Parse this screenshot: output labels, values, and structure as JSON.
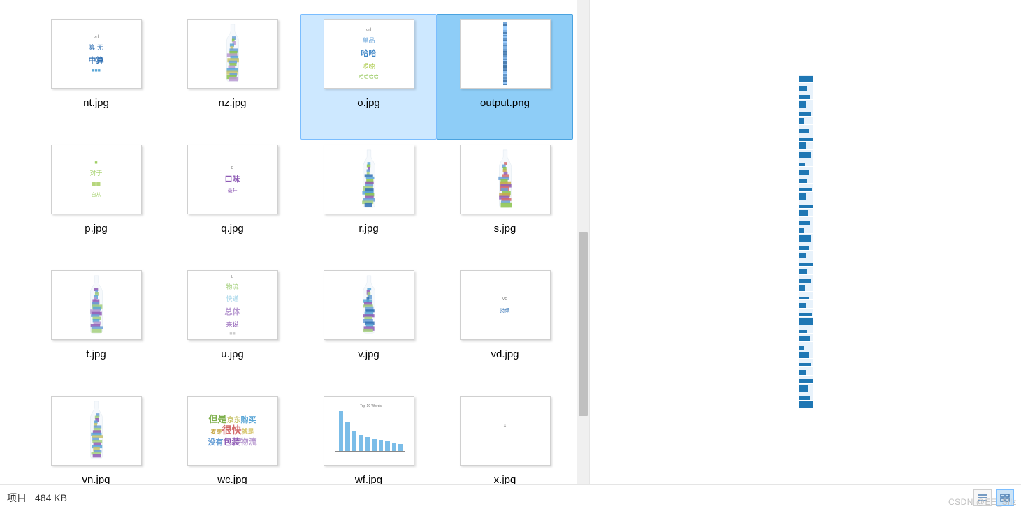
{
  "grid": {
    "items": [
      {
        "name": "nt.jpg",
        "kind": "text",
        "lines": [
          "vd",
          "算 无",
          "中算",
          "■■■"
        ],
        "colors": [
          "#888888",
          "#2f6fb3",
          "#2f6fb3",
          "#5aa6d6"
        ],
        "selected": "none"
      },
      {
        "name": "nz.jpg",
        "kind": "bottle",
        "palette": "mixA",
        "selected": "none"
      },
      {
        "name": "o.jpg",
        "kind": "text",
        "lines": [
          "vd",
          "单品",
          "哈哈",
          "啰嗦",
          "哈哈哈哈"
        ],
        "colors": [
          "#888888",
          "#6fa8dc",
          "#3d85c6",
          "#a4c639",
          "#8bc34a"
        ],
        "selected": "light"
      },
      {
        "name": "output.png",
        "kind": "strip",
        "selected": "dark"
      },
      {
        "name": "p.jpg",
        "kind": "text",
        "lines": [
          "■",
          "对于",
          "■■",
          "自从"
        ],
        "colors": [
          "#9fce63",
          "#9fce63",
          "#b6d67c",
          "#9fce63"
        ],
        "selected": "none"
      },
      {
        "name": "q.jpg",
        "kind": "text",
        "lines": [
          "q",
          "口味",
          "毫升"
        ],
        "colors": [
          "#888888",
          "#8e5bb5",
          "#8e5bb5"
        ],
        "selected": "none"
      },
      {
        "name": "r.jpg",
        "kind": "bottle",
        "palette": "mixB",
        "selected": "none"
      },
      {
        "name": "s.jpg",
        "kind": "bottle",
        "palette": "mixC",
        "selected": "none"
      },
      {
        "name": "t.jpg",
        "kind": "bottle",
        "palette": "mixD",
        "selected": "none"
      },
      {
        "name": "u.jpg",
        "kind": "text",
        "lines": [
          "u",
          "物流",
          "快递",
          "总体",
          "来说",
          "■■"
        ],
        "colors": [
          "#888888",
          "#a4d07c",
          "#9fd3e8",
          "#b89ad1",
          "#8e5bb5",
          "#cccccc"
        ],
        "selected": "none"
      },
      {
        "name": "v.jpg",
        "kind": "bottle",
        "palette": "mixE",
        "selected": "none"
      },
      {
        "name": "vd.jpg",
        "kind": "text",
        "lines": [
          "vd",
          "",
          "持续"
        ],
        "colors": [
          "#888888",
          "#ffffff",
          "#2f6fb3"
        ],
        "selected": "none"
      },
      {
        "name": "vn.jpg",
        "kind": "bottle",
        "palette": "mixF",
        "selected": "none"
      },
      {
        "name": "wc.jpg",
        "kind": "wcblock",
        "tokens": [
          {
            "t": "但是",
            "c": "#7fb04e",
            "s": 13
          },
          {
            "t": "京东",
            "c": "#c7c36a",
            "s": 10
          },
          {
            "t": "购买",
            "c": "#5aa6d6",
            "s": 11
          },
          {
            "t": "麦芽",
            "c": "#c9a94a",
            "s": 8
          },
          {
            "t": "很快",
            "c": "#d36a6a",
            "s": 14
          },
          {
            "t": "就是",
            "c": "#d6c56a",
            "s": 9
          },
          {
            "t": "没有",
            "c": "#6aa0d6",
            "s": 11
          },
          {
            "t": "包装",
            "c": "#8e5bb5",
            "s": 12
          },
          {
            "t": "物流",
            "c": "#b89ad1",
            "s": 12
          }
        ],
        "selected": "none"
      },
      {
        "name": "wf.jpg",
        "kind": "barchart",
        "title": "Top 10 Words",
        "bars": [
          95,
          70,
          48,
          40,
          35,
          30,
          28,
          25,
          22,
          18
        ],
        "bar_color": "#7bbde8",
        "selected": "none"
      },
      {
        "name": "x.jpg",
        "kind": "text",
        "lines": [
          "x",
          "",
          "——"
        ],
        "colors": [
          "#888888",
          "#ffffff",
          "#c7c36a"
        ],
        "selected": "none"
      }
    ]
  },
  "scroll": {
    "thumb_top_pct": 48,
    "thumb_height_pct": 38
  },
  "preview": {
    "strip_cells": 40,
    "fill_color": "#1f77b4",
    "bg_color": "#e8f2fb",
    "heights": [
      90,
      70,
      55,
      95,
      60,
      80,
      50,
      40,
      88,
      72,
      36,
      64,
      58,
      44,
      92,
      30,
      76,
      52,
      68,
      84,
      46,
      60,
      38,
      72,
      56,
      88,
      42,
      64,
      50,
      96,
      34,
      70,
      58,
      80,
      44,
      66,
      52,
      90,
      48,
      100
    ],
    "widths": [
      100,
      60,
      80,
      50,
      90,
      40,
      70,
      100,
      55,
      85,
      45,
      75,
      60,
      95,
      50,
      100,
      65,
      80,
      40,
      90,
      70,
      55,
      100,
      60,
      85,
      45,
      75,
      50,
      95,
      100,
      60,
      80,
      40,
      70,
      90,
      55,
      100,
      65,
      80,
      100
    ]
  },
  "status": {
    "left_label": "项目",
    "size_label": "484 KB"
  },
  "watermark": "CSDN @EE_Silz",
  "colors": {
    "selection_light_bg": "#cde8ff",
    "selection_light_border": "#7abdff",
    "selection_dark_bg": "#8ecdf7",
    "selection_dark_border": "#4aa3e0",
    "thumb_border": "#d0d0d0",
    "scrollbar_track": "#f0f0f0",
    "scrollbar_thumb": "#c0c0c0"
  },
  "bottle_palettes": {
    "mixA": [
      "#6aa0d6",
      "#8bc34a",
      "#b89ad1",
      "#5aa6d6",
      "#c7c36a"
    ],
    "mixB": [
      "#5aa6d6",
      "#8bc34a",
      "#8e5bb5",
      "#6aa0d6",
      "#a4d07c",
      "#2f6fb3"
    ],
    "mixC": [
      "#d36a6a",
      "#6aa0d6",
      "#8bc34a",
      "#c9a94a",
      "#8e5bb5"
    ],
    "mixD": [
      "#8e5bb5",
      "#6aa0d6",
      "#a4d07c",
      "#5aa6d6",
      "#b89ad1"
    ],
    "mixE": [
      "#5aa6d6",
      "#8e5bb5",
      "#a4d07c",
      "#6aa0d6",
      "#2f6fb3"
    ],
    "mixF": [
      "#6aa0d6",
      "#a4d07c",
      "#8e5bb5",
      "#5aa6d6",
      "#c7c36a"
    ]
  }
}
